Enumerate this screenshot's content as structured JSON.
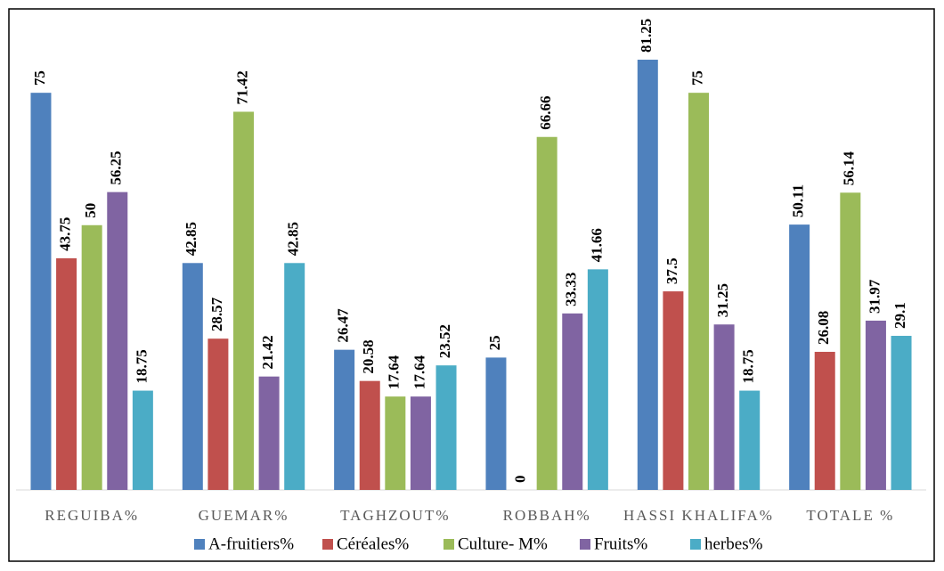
{
  "chart_data": {
    "type": "bar",
    "categories": [
      "REGUIBA%",
      "GUEMAR%",
      "TAGHZOUT%",
      "ROBBAH%",
      "HASSI KHALIFA%",
      "TOTALE %"
    ],
    "series": [
      {
        "name": "A-fruitiers%",
        "color": "#4f81bd",
        "values": [
          75,
          42.85,
          26.47,
          25,
          81.25,
          50.11
        ]
      },
      {
        "name": "Céréales%",
        "color": "#c0504d",
        "values": [
          43.75,
          28.57,
          20.58,
          0,
          37.5,
          26.08
        ]
      },
      {
        "name": "Culture- M%",
        "color": "#9bbb59",
        "values": [
          50,
          71.42,
          17.64,
          66.66,
          75,
          56.14
        ]
      },
      {
        "name": "Fruits%",
        "color": "#8064a2",
        "values": [
          56.25,
          21.42,
          17.64,
          33.33,
          31.25,
          31.97
        ]
      },
      {
        "name": "herbes%",
        "color": "#4bacc6",
        "values": [
          18.75,
          42.85,
          23.52,
          41.66,
          18.75,
          29.1
        ]
      }
    ],
    "ylim": [
      0,
      90
    ],
    "legend": "bottom"
  }
}
